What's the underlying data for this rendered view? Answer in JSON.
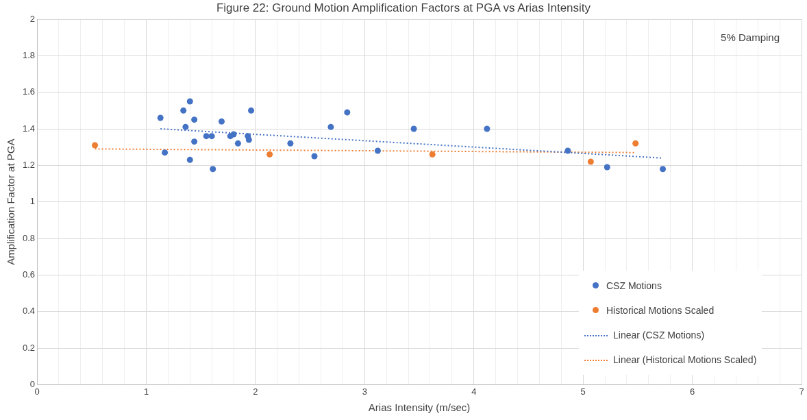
{
  "chart_data": {
    "type": "scatter",
    "title": "Figure 22: Ground Motion Amplification Factors at PGA vs Arias Intensity",
    "xlabel": "Arias Intensity (m/sec)",
    "ylabel": "Amplification Factor at PGA",
    "annotations": [
      "5% Damping"
    ],
    "xlim": [
      0,
      7
    ],
    "ylim": [
      0,
      2
    ],
    "xticks": [
      0,
      {
        "value": 0.2,
        "label": null
      },
      {
        "value": 0.4,
        "label": null
      },
      {
        "value": 0.6,
        "label": null
      },
      {
        "value": 0.8,
        "label": null
      },
      1,
      {
        "value": 1.2,
        "label": null
      },
      {
        "value": 1.4,
        "label": null
      },
      {
        "value": 1.6,
        "label": null
      },
      {
        "value": 1.8,
        "label": null
      },
      2,
      {
        "value": 2.2,
        "label": null
      },
      {
        "value": 2.4,
        "label": null
      },
      {
        "value": 2.6,
        "label": null
      },
      {
        "value": 2.8,
        "label": null
      },
      3,
      {
        "value": 3.2,
        "label": null
      },
      {
        "value": 3.4,
        "label": null
      },
      {
        "value": 3.6,
        "label": null
      },
      {
        "value": 3.8,
        "label": null
      },
      4,
      {
        "value": 4.2,
        "label": null
      },
      {
        "value": 4.4,
        "label": null
      },
      {
        "value": 4.6,
        "label": null
      },
      {
        "value": 4.8,
        "label": null
      },
      5,
      {
        "value": 5.2,
        "label": null
      },
      {
        "value": 5.4,
        "label": null
      },
      {
        "value": 5.6,
        "label": null
      },
      {
        "value": 5.8,
        "label": null
      },
      6,
      {
        "value": 6.2,
        "label": null
      },
      {
        "value": 6.4,
        "label": null
      },
      {
        "value": 6.6,
        "label": null
      },
      {
        "value": 6.8,
        "label": null
      },
      7
    ],
    "yticks": [
      0,
      0.2,
      0.4,
      0.6,
      0.8,
      1,
      1.2,
      1.4,
      1.6,
      1.8,
      2
    ],
    "grid": true,
    "legend": "bottom right",
    "marker": "circle",
    "series": [
      {
        "name": "CSZ Motions",
        "color": "#4472c4",
        "x": [
          1.13,
          1.17,
          1.34,
          1.4,
          1.36,
          1.44,
          1.4,
          1.44,
          1.55,
          1.6,
          1.61,
          1.69,
          1.77,
          1.8,
          1.84,
          1.93,
          1.94,
          1.96,
          2.32,
          2.54,
          2.69,
          2.84,
          3.12,
          3.45,
          4.12,
          4.86,
          5.22,
          5.73
        ],
        "values": [
          1.46,
          1.27,
          1.5,
          1.55,
          1.41,
          1.45,
          1.23,
          1.33,
          1.36,
          1.36,
          1.18,
          1.44,
          1.36,
          1.37,
          1.32,
          1.36,
          1.34,
          1.5,
          1.32,
          1.25,
          1.41,
          1.49,
          1.28,
          1.4,
          1.4,
          1.28,
          1.19,
          1.18
        ]
      },
      {
        "name": "Historical Motions Scaled",
        "color": "#ed7d31",
        "x": [
          0.53,
          2.13,
          3.62,
          5.07,
          5.48
        ],
        "values": [
          1.31,
          1.26,
          1.26,
          1.22,
          1.32
        ]
      },
      {
        "name": "Linear (CSZ Motions)",
        "type": "line",
        "line_style": "dotted",
        "marker": "none",
        "color": "#4472c4",
        "x": [
          1.13,
          5.73
        ],
        "values": [
          1.4,
          1.24
        ]
      },
      {
        "name": "Linear (Historical Motions Scaled)",
        "type": "line",
        "line_style": "dotted",
        "marker": "none",
        "color": "#ed7d31",
        "x": [
          0.53,
          5.48
        ],
        "values": [
          1.29,
          1.27
        ]
      }
    ]
  }
}
